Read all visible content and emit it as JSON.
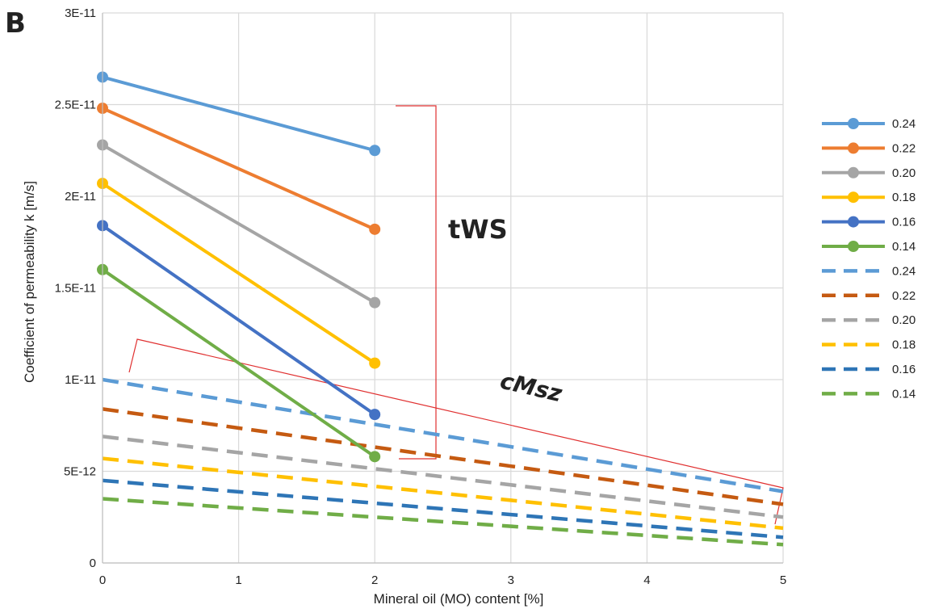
{
  "chart_data": {
    "type": "line",
    "panel_label": "B",
    "xlabel": "Mineral oil (MO) content [%]",
    "ylabel": "Coefficient of permeability k [m/s]",
    "xlim": [
      0,
      5
    ],
    "ylim": [
      0,
      3e-11
    ],
    "x_ticks": [
      0,
      1,
      2,
      3,
      4,
      5
    ],
    "x_tick_labels": [
      "0",
      "1",
      "2",
      "3",
      "4",
      "5"
    ],
    "y_ticks": [
      0,
      5e-12,
      1e-11,
      1.5e-11,
      2e-11,
      2.5e-11,
      3e-11
    ],
    "y_tick_labels": [
      "0",
      "5E-12",
      "1E-11",
      "1.5E-11",
      "2E-11",
      "2.5E-11",
      "3E-11"
    ],
    "grid": true,
    "legend_position": "right",
    "series": [
      {
        "name": "0.24",
        "group": "tWS",
        "style": "solid-marker",
        "color": "#5B9BD5",
        "x": [
          0,
          2
        ],
        "y": [
          2.65e-11,
          2.25e-11
        ]
      },
      {
        "name": "0.22",
        "group": "tWS",
        "style": "solid-marker",
        "color": "#ED7D31",
        "x": [
          0,
          2
        ],
        "y": [
          2.48e-11,
          1.82e-11
        ]
      },
      {
        "name": "0.20",
        "group": "tWS",
        "style": "solid-marker",
        "color": "#A5A5A5",
        "x": [
          0,
          2
        ],
        "y": [
          2.28e-11,
          1.42e-11
        ]
      },
      {
        "name": "0.18",
        "group": "tWS",
        "style": "solid-marker",
        "color": "#FFC000",
        "x": [
          0,
          2
        ],
        "y": [
          2.07e-11,
          1.09e-11
        ]
      },
      {
        "name": "0.16",
        "group": "tWS",
        "style": "solid-marker",
        "color": "#4472C4",
        "x": [
          0,
          2
        ],
        "y": [
          1.84e-11,
          8.1e-12
        ]
      },
      {
        "name": "0.14",
        "group": "tWS",
        "style": "solid-marker",
        "color": "#70AD47",
        "x": [
          0,
          2
        ],
        "y": [
          1.6e-11,
          5.8e-12
        ]
      },
      {
        "name": "0.24",
        "group": "cMsz",
        "style": "dashed",
        "color": "#5B9BD5",
        "x": [
          0,
          5
        ],
        "y": [
          1e-11,
          3.9e-12
        ]
      },
      {
        "name": "0.22",
        "group": "cMsz",
        "style": "dashed",
        "color": "#C55A11",
        "x": [
          0,
          5
        ],
        "y": [
          8.4e-12,
          3.2e-12
        ]
      },
      {
        "name": "0.20",
        "group": "cMsz",
        "style": "dashed",
        "color": "#A5A5A5",
        "x": [
          0,
          5
        ],
        "y": [
          6.9e-12,
          2.5e-12
        ]
      },
      {
        "name": "0.18",
        "group": "cMsz",
        "style": "dashed",
        "color": "#FFC000",
        "x": [
          0,
          5
        ],
        "y": [
          5.7e-12,
          1.9e-12
        ]
      },
      {
        "name": "0.16",
        "group": "cMsz",
        "style": "dashed",
        "color": "#2E75B6",
        "x": [
          0,
          5
        ],
        "y": [
          4.5e-12,
          1.4e-12
        ]
      },
      {
        "name": "0.14",
        "group": "cMsz",
        "style": "dashed",
        "color": "#70AD47",
        "x": [
          0,
          5
        ],
        "y": [
          3.5e-12,
          1e-12
        ]
      }
    ],
    "annotations": [
      {
        "text": "tWS",
        "bracket_color": "#E03030"
      },
      {
        "text": "cMsz",
        "bracket_color": "#E03030"
      }
    ]
  }
}
